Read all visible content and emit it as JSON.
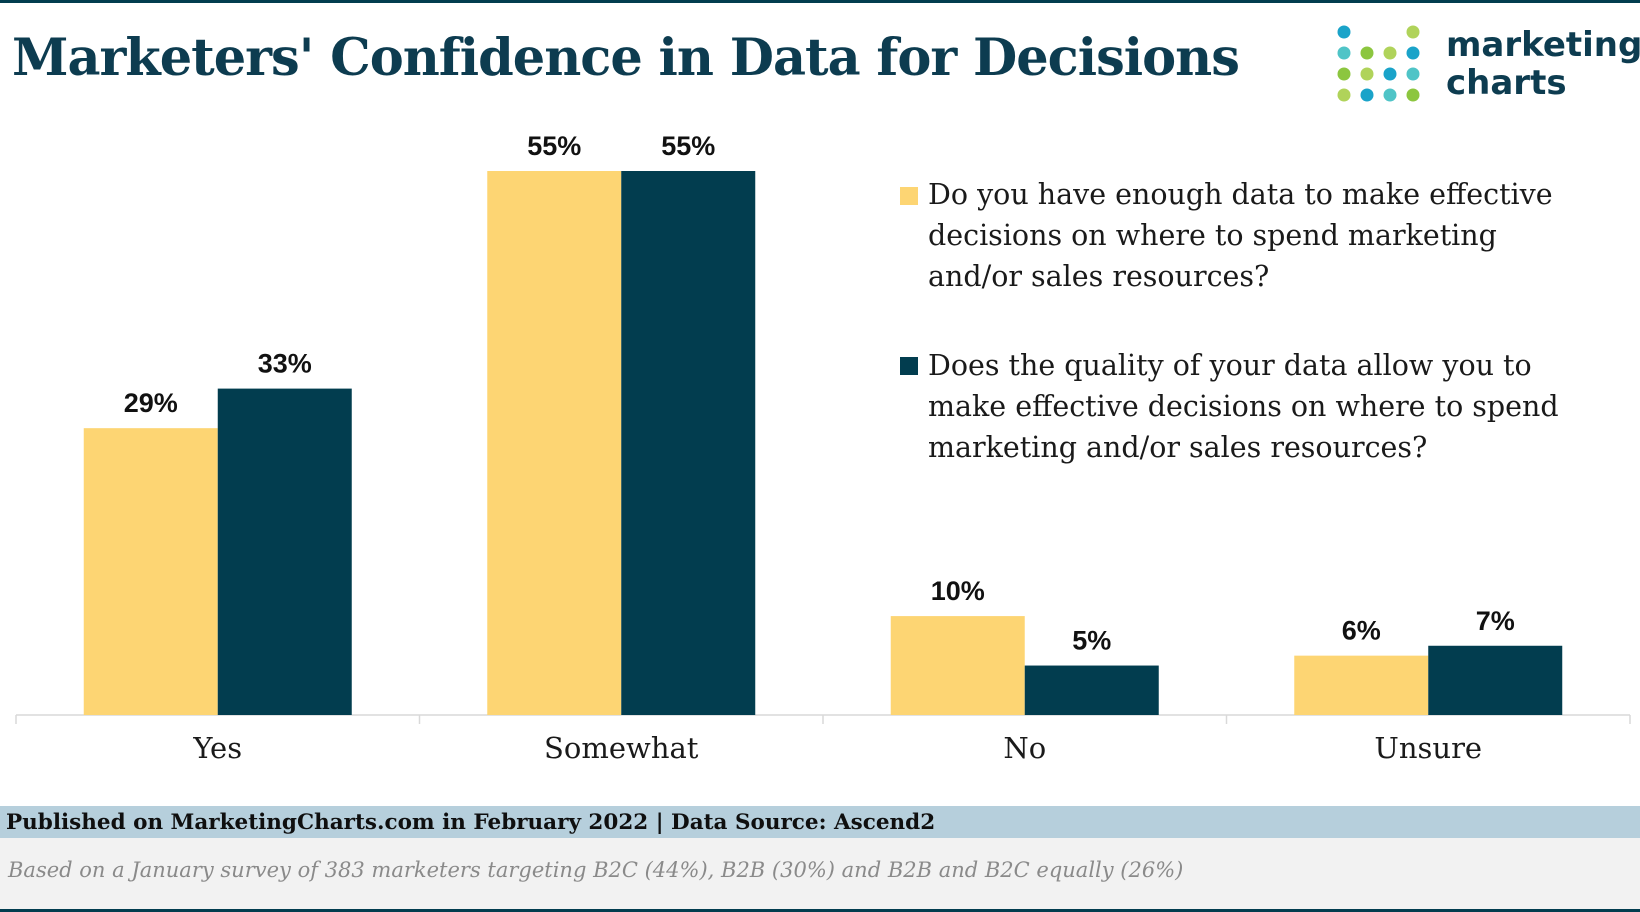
{
  "title": "Marketers' Confidence in Data for Decisions",
  "logo": {
    "line1": "marketing",
    "line2": "charts"
  },
  "legend": [
    {
      "label": "Do you have enough data to make effective decisions on where to spend marketing and/or sales resources?",
      "color": "#fdd573"
    },
    {
      "label": "Does the quality of your data allow you to make effective decisions on where to spend marketing and/or sales resources?",
      "color": "#023d4f"
    }
  ],
  "footer": {
    "source": "Published on MarketingCharts.com in February 2022 | Data Source: Ascend2",
    "note": "Based on a January survey of 383 marketers targeting B2C (44%), B2B (30%) and B2B and B2C equally (26%)"
  },
  "chart_data": {
    "type": "bar",
    "categories": [
      "Yes",
      "Somewhat",
      "No",
      "Unsure"
    ],
    "series": [
      {
        "name": "Do you have enough data to make effective decisions on where to spend marketing and/or sales resources?",
        "values": [
          29,
          55,
          10,
          6
        ],
        "color": "#fdd573"
      },
      {
        "name": "Does the quality of your data allow you to make effective decisions on where to spend marketing and/or sales resources?",
        "values": [
          33,
          55,
          5,
          7
        ],
        "color": "#023d4f"
      }
    ],
    "value_suffix": "%",
    "ylim": [
      0,
      55
    ],
    "grid": false,
    "legend_position": "right"
  }
}
